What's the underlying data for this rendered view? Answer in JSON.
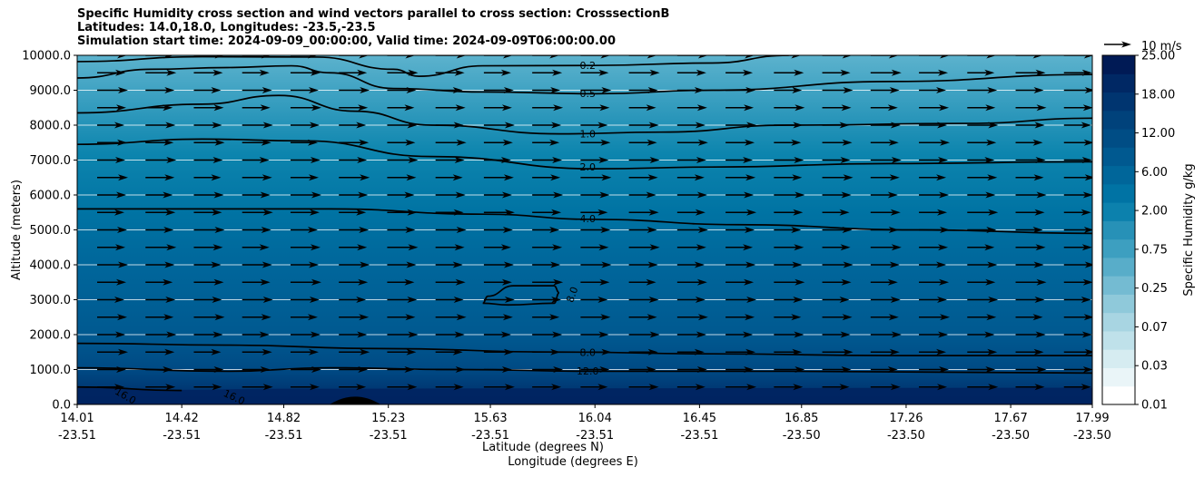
{
  "chart_data": {
    "type": "contour",
    "title": [
      "Specific Humidity cross section and wind vectors parallel to cross section: CrosssectionB",
      "Latitudes: 14.0,18.0, Longitudes: -23.5,-23.5",
      "Simulation start time: 2024-09-09_00:00:00, Valid time: 2024-09-09T06:00:00.00"
    ],
    "xlabel_lat": "Latitude (degrees N)",
    "xlabel_lon": "Longitude (degrees E)",
    "ylabel": "Altitude (meters)",
    "ylim": [
      0,
      10000
    ],
    "xlim": [
      14.01,
      17.99
    ],
    "yticks": [
      "0.0",
      "1000.0",
      "2000.0",
      "3000.0",
      "4000.0",
      "5000.0",
      "6000.0",
      "7000.0",
      "8000.0",
      "9000.0",
      "10000.0"
    ],
    "xticks": [
      {
        "lat": "14.01",
        "lon": "-23.51"
      },
      {
        "lat": "14.42",
        "lon": "-23.51"
      },
      {
        "lat": "14.82",
        "lon": "-23.51"
      },
      {
        "lat": "15.23",
        "lon": "-23.51"
      },
      {
        "lat": "15.63",
        "lon": "-23.51"
      },
      {
        "lat": "16.04",
        "lon": "-23.51"
      },
      {
        "lat": "16.45",
        "lon": "-23.51"
      },
      {
        "lat": "16.85",
        "lon": "-23.50"
      },
      {
        "lat": "17.26",
        "lon": "-23.50"
      },
      {
        "lat": "17.67",
        "lon": "-23.50"
      },
      {
        "lat": "17.99",
        "lon": "-23.50"
      }
    ],
    "colorbar": {
      "label": "Specific Humidity g/kg",
      "ticks": [
        "0.01",
        "0.03",
        "0.07",
        "0.25",
        "0.75",
        "2.00",
        "6.00",
        "12.00",
        "18.00",
        "25.00"
      ],
      "levels": [
        0.01,
        0.02,
        0.03,
        0.05,
        0.07,
        0.1,
        0.25,
        0.5,
        0.75,
        1.0,
        2.0,
        4.0,
        6.0,
        8.0,
        12.0,
        16.0,
        18.0,
        20.0,
        25.0
      ],
      "colors": [
        "#ffffff",
        "#eaf5f8",
        "#d6ecf1",
        "#bfe1ea",
        "#a8d5e2",
        "#8fc9da",
        "#74bbd2",
        "#58adc9",
        "#3d9fc0",
        "#2791b7",
        "#0c81ad",
        "#0073a4",
        "#00669a",
        "#005990",
        "#004d85",
        "#00427b",
        "#003570",
        "#002864",
        "#001a55"
      ]
    },
    "contours": [
      {
        "label": "0.2",
        "points": [
          [
            14.01,
            9820
          ],
          [
            14.5,
            9960
          ],
          [
            14.95,
            9950
          ],
          [
            15.25,
            9600
          ],
          [
            15.35,
            9400
          ],
          [
            15.6,
            9700
          ],
          [
            16.04,
            9710
          ],
          [
            16.5,
            9780
          ],
          [
            16.8,
            10000
          ]
        ]
      },
      {
        "label": "0.5",
        "points": [
          [
            14.01,
            9350
          ],
          [
            14.3,
            9600
          ],
          [
            14.6,
            9650
          ],
          [
            14.85,
            9700
          ],
          [
            15.0,
            9500
          ],
          [
            15.25,
            9050
          ],
          [
            15.6,
            8950
          ],
          [
            16.04,
            8900
          ],
          [
            16.5,
            9000
          ],
          [
            17.2,
            9250
          ],
          [
            17.99,
            9450
          ]
        ]
      },
      {
        "label": "1.0",
        "points": [
          [
            14.01,
            8350
          ],
          [
            14.5,
            8600
          ],
          [
            14.8,
            8850
          ],
          [
            15.1,
            8400
          ],
          [
            15.4,
            8000
          ],
          [
            15.9,
            7750
          ],
          [
            16.3,
            7800
          ],
          [
            16.8,
            8000
          ],
          [
            17.5,
            8050
          ],
          [
            17.99,
            8200
          ]
        ]
      },
      {
        "label": "2.0",
        "points": [
          [
            14.01,
            7450
          ],
          [
            14.5,
            7600
          ],
          [
            14.9,
            7550
          ],
          [
            15.4,
            7100
          ],
          [
            16.04,
            6750
          ],
          [
            16.5,
            6800
          ],
          [
            17.2,
            6900
          ],
          [
            17.99,
            6950
          ]
        ]
      },
      {
        "label": "4.0",
        "points": [
          [
            14.01,
            5600
          ],
          [
            15.0,
            5600
          ],
          [
            15.6,
            5450
          ],
          [
            16.04,
            5300
          ],
          [
            16.6,
            5150
          ],
          [
            17.3,
            5000
          ],
          [
            17.99,
            4900
          ]
        ]
      },
      {
        "label": "8.0",
        "points": [
          [
            15.6,
            2900
          ],
          [
            15.62,
            3100
          ],
          [
            15.72,
            3400
          ],
          [
            15.88,
            3400
          ],
          [
            15.9,
            3200
          ],
          [
            15.88,
            2900
          ],
          [
            15.7,
            2850
          ],
          [
            15.6,
            2900
          ]
        ]
      },
      {
        "label": "8.0",
        "points": [
          [
            14.01,
            1750
          ],
          [
            14.6,
            1700
          ],
          [
            15.2,
            1600
          ],
          [
            15.9,
            1500
          ],
          [
            16.5,
            1450
          ],
          [
            17.2,
            1400
          ],
          [
            17.99,
            1400
          ]
        ]
      },
      {
        "label": "12.0",
        "points": [
          [
            14.01,
            1050
          ],
          [
            14.6,
            950
          ],
          [
            15.0,
            1050
          ],
          [
            15.5,
            1000
          ],
          [
            16.04,
            950
          ],
          [
            16.8,
            950
          ],
          [
            17.99,
            900
          ]
        ]
      },
      {
        "label": "16.0",
        "points": [
          [
            14.01,
            500
          ],
          [
            14.42,
            400
          ]
        ]
      }
    ],
    "wind_vectors": {
      "direction": "parallel to cross section",
      "reference_label": "10 m/s",
      "reference_speed": 10
    }
  }
}
